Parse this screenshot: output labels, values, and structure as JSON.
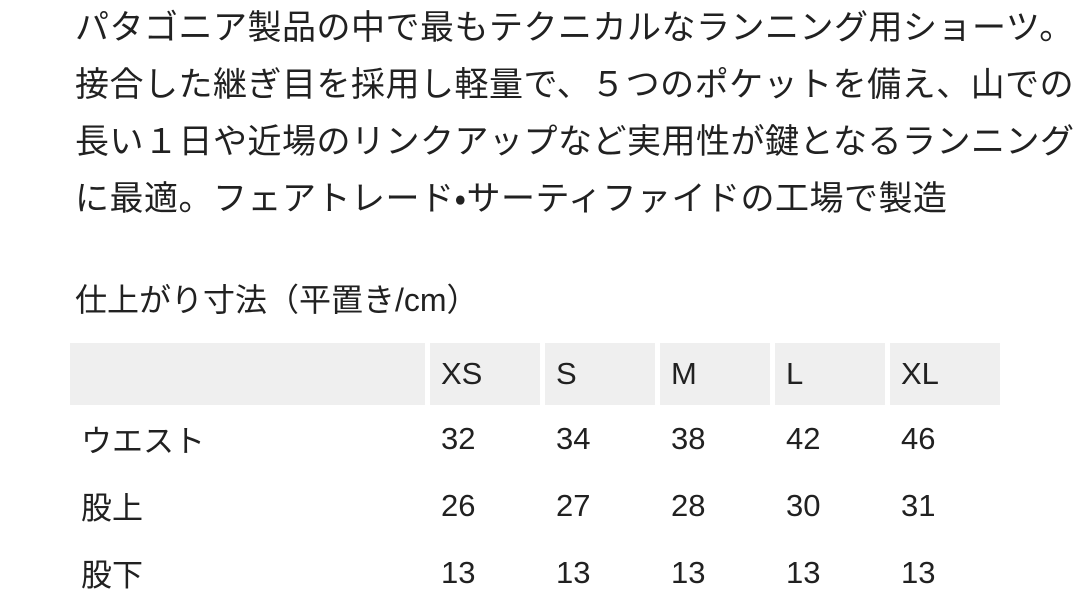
{
  "page": {
    "background_color": "#ffffff",
    "text_color": "#212121",
    "table_header_bg": "#efefef"
  },
  "description": {
    "lines": [
      "パタゴニア製品の中で最もテクニカルなランニング用ショーツ。",
      "接合した継ぎ目を採用し軽量で、５つのポケットを備え、山での",
      "長い１日や近場のリンクアップなど実用性が鍵となるランニング",
      "に最適。フェアトレード・サーティファイドの工場で製造"
    ]
  },
  "size_section": {
    "heading": "仕上がり寸法（平置き/cm）",
    "table": {
      "columns": [
        "",
        "XS",
        "S",
        "M",
        "L",
        "XL"
      ],
      "rows": [
        {
          "label": "ウエスト",
          "values": [
            "32",
            "34",
            "38",
            "42",
            "46"
          ]
        },
        {
          "label": "股上",
          "values": [
            "26",
            "27",
            "28",
            "30",
            "31"
          ]
        },
        {
          "label": "股下",
          "values": [
            "13",
            "13",
            "13",
            "13",
            "13"
          ]
        }
      ]
    }
  }
}
